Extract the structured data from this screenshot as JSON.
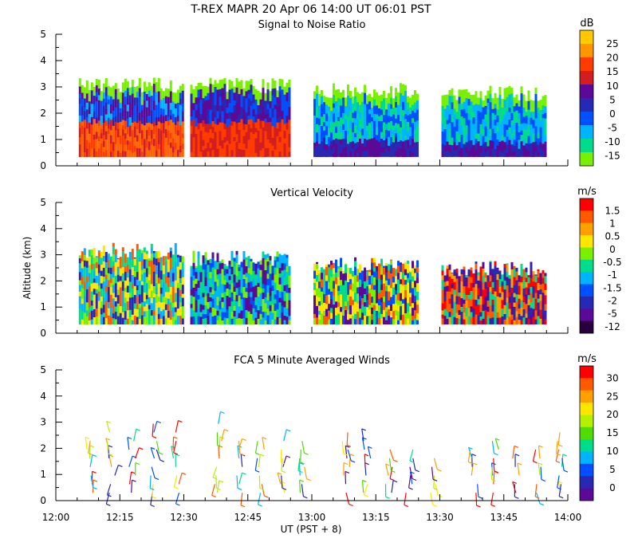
{
  "header": {
    "title": "T-REX   MAPR 20 Apr 06   14:00 UT   06:01   PST"
  },
  "axis": {
    "ylabel": "Altitude (km)",
    "xlabel": "UT  (PST + 8)",
    "xticks": [
      "12:00",
      "12:15",
      "12:30",
      "12:45",
      "13:00",
      "13:15",
      "13:30",
      "13:45",
      "14:00"
    ],
    "yticks": [
      "0",
      "1",
      "2",
      "3",
      "4",
      "5"
    ]
  },
  "chart_data": [
    {
      "type": "heatmap",
      "title": "Signal to Noise Ratio",
      "unit": "dB",
      "x_range_minutes": [
        0,
        120
      ],
      "ylim": [
        0,
        5
      ],
      "gate_bottom_km": 0.35,
      "data_segments_minutes": [
        [
          5,
          30
        ],
        [
          30,
          55
        ],
        [
          60,
          85
        ],
        [
          90,
          115
        ]
      ],
      "colorbar": {
        "labels": [
          "25",
          "20",
          "15",
          "10",
          "5",
          "0",
          "-5",
          "-10",
          "-15"
        ],
        "colors": [
          "#ffc800",
          "#ff9600",
          "#ff3c00",
          "#d21e1e",
          "#5a0a96",
          "#2828b4",
          "#0050ff",
          "#00b4ff",
          "#00dc8c",
          "#78f000"
        ]
      },
      "segments": [
        {
          "low_band_top": 1.8,
          "low_colors": [
            "#ff3c00",
            "#d21e1e",
            "#ff6400"
          ],
          "mid_colors": [
            "#2828b4",
            "#0050ff",
            "#5a0a96",
            "#00b4ff"
          ],
          "top_km": 3.0,
          "cap_color": "#78f000"
        },
        {
          "low_band_top": 1.8,
          "low_colors": [
            "#ff3c00",
            "#d21e1e"
          ],
          "mid_colors": [
            "#5a0a96",
            "#2828b4",
            "#0050ff"
          ],
          "top_km": 3.0,
          "cap_color": "#78f000"
        },
        {
          "low_band_top": 1.1,
          "low_colors": [
            "#2828b4",
            "#5a0a96"
          ],
          "mid_colors": [
            "#0050ff",
            "#00b4ff",
            "#00dc8c"
          ],
          "top_km": 2.8,
          "cap_color": "#78f000"
        },
        {
          "low_band_top": 1.0,
          "low_colors": [
            "#5a0a96",
            "#2828b4"
          ],
          "mid_colors": [
            "#00b4ff",
            "#00dc8c",
            "#0050ff"
          ],
          "top_km": 2.7,
          "cap_color": "#78f000"
        }
      ]
    },
    {
      "type": "heatmap",
      "title": "Vertical Velocity",
      "unit": "m/s",
      "x_range_minutes": [
        0,
        120
      ],
      "ylim": [
        0,
        5
      ],
      "gate_bottom_km": 0.35,
      "data_segments_minutes": [
        [
          5,
          30
        ],
        [
          30,
          55
        ],
        [
          60,
          85
        ],
        [
          90,
          115
        ]
      ],
      "colorbar": {
        "labels": [
          "1.5",
          "1",
          "0.5",
          "0",
          "-0.5",
          "-1",
          "-1.5",
          "-2",
          "-5",
          "-12"
        ],
        "colors": [
          "#ff0000",
          "#ff5a00",
          "#ffa000",
          "#ffe600",
          "#78f000",
          "#00dc8c",
          "#00b4ff",
          "#0050ff",
          "#2828b4",
          "#5a0a96",
          "#28003c"
        ]
      },
      "segments": [
        {
          "colors": [
            "#78f000",
            "#00dc8c",
            "#ffe600",
            "#00b4ff",
            "#2828b4",
            "#ff5a00"
          ],
          "top_km": 3.1
        },
        {
          "colors": [
            "#00b4ff",
            "#00dc8c",
            "#0050ff",
            "#78f000",
            "#5a0a96"
          ],
          "top_km": 2.8
        },
        {
          "colors": [
            "#5a0a96",
            "#0050ff",
            "#ffe600",
            "#00dc8c",
            "#ff5a00",
            "#78f000"
          ],
          "top_km": 2.6
        },
        {
          "colors": [
            "#5a0a96",
            "#2828b4",
            "#ff5a00",
            "#ffa000",
            "#00dc8c",
            "#ff0000"
          ],
          "top_km": 2.4
        }
      ]
    },
    {
      "type": "scatter",
      "title": "FCA 5 Minute Averaged Winds",
      "unit": "m/s",
      "x_range_minutes": [
        0,
        120
      ],
      "ylim": [
        0,
        5
      ],
      "colorbar": {
        "labels": [
          "30",
          "25",
          "20",
          "15",
          "10",
          "5",
          "0"
        ],
        "colors": [
          "#ff0000",
          "#ff5a00",
          "#ffa000",
          "#ffe600",
          "#b4f000",
          "#50dc00",
          "#00dc8c",
          "#00b4ff",
          "#0050ff",
          "#2828b4",
          "#5a0a96"
        ]
      },
      "profile_times_minutes": [
        8,
        13,
        18,
        23,
        28,
        38,
        43,
        48,
        53,
        58,
        68,
        73,
        78,
        83,
        88,
        98,
        103,
        108,
        113,
        118
      ],
      "profile_tops_km": [
        2.6,
        2.8,
        2.6,
        3.2,
        2.8,
        3.0,
        2.6,
        2.6,
        2.4,
        2.6,
        2.8,
        2.4,
        2.2,
        2.2,
        1.8,
        2.2,
        2.4,
        1.8,
        2.2,
        2.8
      ]
    }
  ]
}
